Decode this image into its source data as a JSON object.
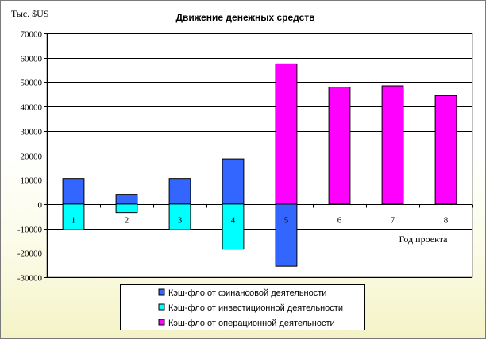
{
  "chart_data": {
    "type": "bar",
    "title": "Движение денежных средств",
    "ylabel": "Тыс. $US",
    "xlabel": "Год проекта",
    "categories": [
      "1",
      "2",
      "3",
      "4",
      "5",
      "6",
      "7",
      "8"
    ],
    "ylim": [
      -30000,
      70000
    ],
    "yticks": [
      70000,
      60000,
      50000,
      40000,
      30000,
      20000,
      10000,
      0,
      -10000,
      -20000,
      -30000
    ],
    "grid": true,
    "legend_position": "bottom-center",
    "series": [
      {
        "name": "Кэш-фло от финансовой деятельности",
        "color": "#3366ff",
        "values": [
          10500,
          4000,
          10500,
          18500,
          -25500,
          0,
          0,
          0
        ]
      },
      {
        "name": "Кэш-фло от инвестиционной деятельности",
        "color": "#00ffff",
        "values": [
          -10500,
          -3500,
          -10500,
          -18500,
          0,
          0,
          0,
          0
        ]
      },
      {
        "name": "Кэш-фло от операционной деятельности",
        "color": "#ff00ff",
        "values": [
          0,
          0,
          0,
          0,
          57500,
          48000,
          48500,
          44500
        ]
      }
    ]
  }
}
